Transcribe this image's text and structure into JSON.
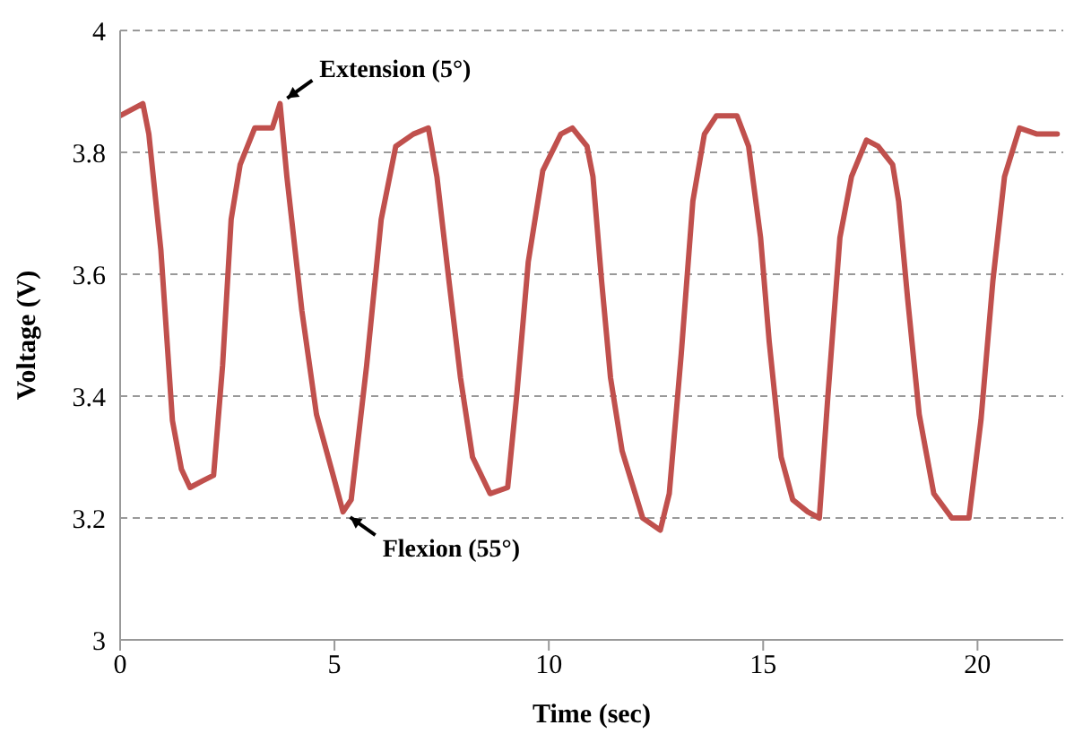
{
  "chart_data": {
    "type": "line",
    "xlabel": "Time (sec)",
    "ylabel": "Voltage (V)",
    "xlim": [
      0,
      22
    ],
    "xticks": [
      0,
      5,
      10,
      15,
      20
    ],
    "ylim": [
      3,
      4
    ],
    "yticks": [
      3,
      3.2,
      3.4,
      3.6,
      3.8,
      4
    ],
    "grid": "y",
    "legend": false,
    "marker": "none",
    "line_style": "solid",
    "annotations": [
      {
        "text": "Extension (5°)",
        "x": 3.73,
        "y": 3.88
      },
      {
        "text": "Flexion (55°)",
        "x": 5.2,
        "y": 3.21
      }
    ],
    "series": [
      {
        "color": "#c0504d",
        "x": [
          0,
          0.53,
          0.67,
          0.95,
          1.22,
          1.43,
          1.63,
          1.9,
          2.18,
          2.39,
          2.59,
          2.8,
          3.14,
          3.55,
          3.73,
          3.89,
          4.24,
          4.58,
          4.93,
          5.2,
          5.39,
          5.75,
          6.09,
          6.43,
          6.84,
          7.19,
          7.39,
          7.67,
          7.94,
          8.22,
          8.63,
          9.04,
          9.25,
          9.52,
          9.86,
          10.28,
          10.55,
          10.89,
          11.03,
          11.23,
          11.44,
          11.71,
          12.19,
          12.6,
          12.81,
          13.09,
          13.36,
          13.63,
          13.91,
          14.39,
          14.66,
          14.94,
          15.14,
          15.42,
          15.69,
          16.04,
          16.31,
          16.51,
          16.79,
          17.06,
          17.41,
          17.68,
          18.02,
          18.16,
          18.37,
          18.64,
          18.98,
          19.4,
          19.8,
          20.08,
          20.36,
          20.63,
          20.98,
          21.39,
          21.86
        ],
        "values": [
          3.86,
          3.88,
          3.83,
          3.64,
          3.36,
          3.28,
          3.25,
          3.26,
          3.27,
          3.45,
          3.69,
          3.78,
          3.84,
          3.84,
          3.88,
          3.76,
          3.54,
          3.37,
          3.28,
          3.21,
          3.23,
          3.45,
          3.69,
          3.81,
          3.83,
          3.84,
          3.76,
          3.59,
          3.43,
          3.3,
          3.24,
          3.25,
          3.4,
          3.62,
          3.77,
          3.83,
          3.84,
          3.81,
          3.76,
          3.59,
          3.43,
          3.31,
          3.2,
          3.18,
          3.24,
          3.47,
          3.72,
          3.83,
          3.86,
          3.86,
          3.81,
          3.66,
          3.49,
          3.3,
          3.23,
          3.21,
          3.2,
          3.4,
          3.66,
          3.76,
          3.82,
          3.81,
          3.78,
          3.72,
          3.56,
          3.37,
          3.24,
          3.2,
          3.2,
          3.36,
          3.59,
          3.76,
          3.84,
          3.83,
          3.83
        ]
      }
    ]
  }
}
